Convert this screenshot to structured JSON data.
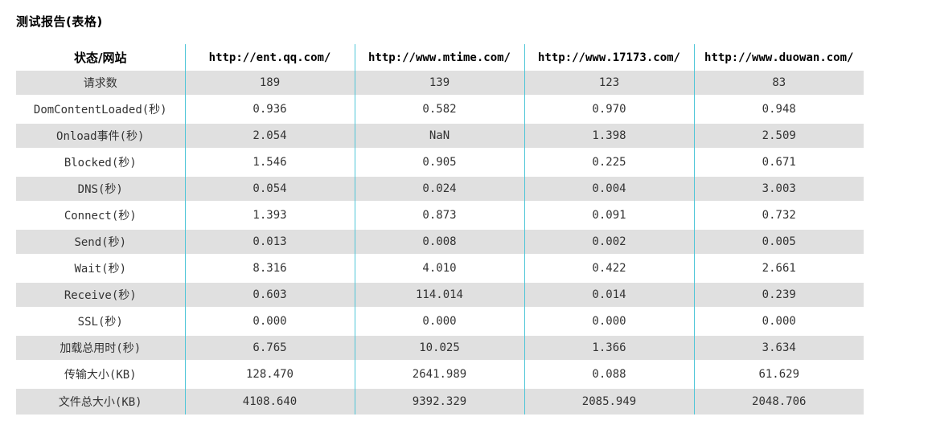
{
  "title": "测试报告(表格)",
  "table": {
    "corner_header": "状态/网站",
    "sites": [
      "http://ent.qq.com/",
      "http://www.mtime.com/",
      "http://www.17173.com/",
      "http://www.duowan.com/"
    ],
    "rows": [
      {
        "label": "请求数",
        "values": [
          "189",
          "139",
          "123",
          "83"
        ]
      },
      {
        "label": "DomContentLoaded(秒)",
        "values": [
          "0.936",
          "0.582",
          "0.970",
          "0.948"
        ]
      },
      {
        "label": "Onload事件(秒)",
        "values": [
          "2.054",
          "NaN",
          "1.398",
          "2.509"
        ]
      },
      {
        "label": "Blocked(秒)",
        "values": [
          "1.546",
          "0.905",
          "0.225",
          "0.671"
        ]
      },
      {
        "label": "DNS(秒)",
        "values": [
          "0.054",
          "0.024",
          "0.004",
          "3.003"
        ]
      },
      {
        "label": "Connect(秒)",
        "values": [
          "1.393",
          "0.873",
          "0.091",
          "0.732"
        ]
      },
      {
        "label": "Send(秒)",
        "values": [
          "0.013",
          "0.008",
          "0.002",
          "0.005"
        ]
      },
      {
        "label": "Wait(秒)",
        "values": [
          "8.316",
          "4.010",
          "0.422",
          "2.661"
        ]
      },
      {
        "label": "Receive(秒)",
        "values": [
          "0.603",
          "114.014",
          "0.014",
          "0.239"
        ]
      },
      {
        "label": "SSL(秒)",
        "values": [
          "0.000",
          "0.000",
          "0.000",
          "0.000"
        ]
      },
      {
        "label": "加载总用时(秒)",
        "values": [
          "6.765",
          "10.025",
          "1.366",
          "3.634"
        ]
      },
      {
        "label": "传输大小(KB)",
        "values": [
          "128.470",
          "2641.989",
          "0.088",
          "61.629"
        ]
      },
      {
        "label": "文件总大小(KB)",
        "values": [
          "4108.640",
          "9392.329",
          "2085.949",
          "2048.706"
        ]
      }
    ]
  }
}
